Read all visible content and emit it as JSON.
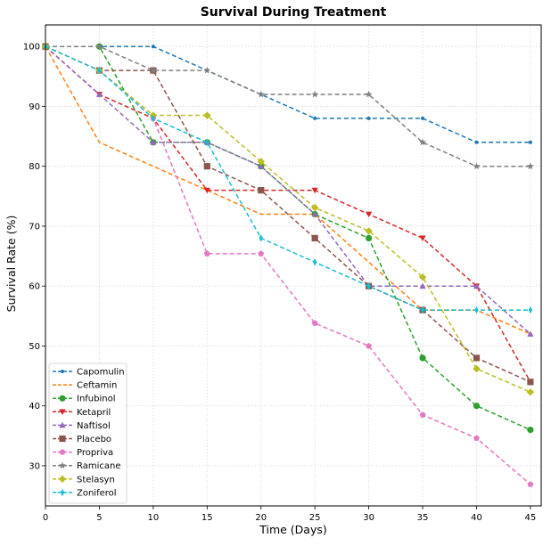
{
  "chart_data": {
    "type": "line",
    "title": "Survival During Treatment",
    "xlabel": "Time (Days)",
    "ylabel": "Survival Rate (%)",
    "x": [
      0,
      5,
      10,
      15,
      20,
      25,
      30,
      35,
      40,
      45
    ],
    "xlim": [
      0,
      46
    ],
    "ylim": [
      23.3,
      103.6
    ],
    "xticks": [
      0,
      5,
      10,
      15,
      20,
      25,
      30,
      35,
      40,
      45
    ],
    "yticks": [
      30,
      40,
      50,
      60,
      70,
      80,
      90,
      100
    ],
    "grid": true,
    "legend_position": "lower-left",
    "series": [
      {
        "name": "Capomulin",
        "color": "#1f77b4",
        "marker": "point",
        "values": [
          100,
          100,
          100,
          96,
          92,
          88,
          88,
          88,
          84,
          84
        ]
      },
      {
        "name": "Ceftamin",
        "color": "#ff7f0e",
        "marker": "none",
        "values": [
          100,
          84,
          80,
          76,
          72,
          72,
          64,
          56,
          56,
          52
        ]
      },
      {
        "name": "Infubinol",
        "color": "#2ca02c",
        "marker": "circle",
        "values": [
          100,
          100,
          84,
          84,
          80,
          72,
          68,
          48,
          40,
          36
        ]
      },
      {
        "name": "Ketapril",
        "color": "#d62728",
        "marker": "triangle-down",
        "values": [
          100,
          92,
          88,
          76,
          76,
          76,
          72,
          68,
          60,
          44
        ]
      },
      {
        "name": "Naftisol",
        "color": "#9467bd",
        "marker": "triangle-up",
        "values": [
          100,
          92,
          84,
          84,
          80,
          72,
          60,
          60,
          60,
          52
        ]
      },
      {
        "name": "Placebo",
        "color": "#8c564b",
        "marker": "square",
        "values": [
          100,
          96,
          96,
          80,
          76,
          68,
          60,
          56,
          48,
          44
        ]
      },
      {
        "name": "Propriva",
        "color": "#e377c2",
        "marker": "pentagon",
        "values": [
          100,
          96,
          88,
          65.4,
          65.4,
          53.8,
          50,
          38.5,
          34.6,
          26.9
        ]
      },
      {
        "name": "Ramicane",
        "color": "#7f7f7f",
        "marker": "star",
        "values": [
          100,
          100,
          96,
          96,
          92,
          92,
          92,
          84,
          80,
          80
        ]
      },
      {
        "name": "Stelasyn",
        "color": "#bcbd22",
        "marker": "diamond",
        "values": [
          100,
          96,
          88.5,
          88.5,
          80.8,
          73.1,
          69.2,
          61.5,
          46.2,
          42.3
        ]
      },
      {
        "name": "Zoniferol",
        "color": "#17becf",
        "marker": "thin-diamond",
        "values": [
          100,
          96,
          88,
          84,
          68,
          64,
          60,
          56,
          56,
          56
        ]
      }
    ]
  }
}
